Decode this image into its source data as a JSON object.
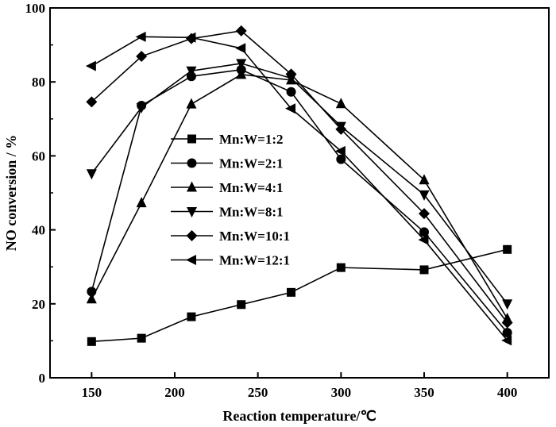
{
  "chart_data": {
    "type": "line",
    "xlabel": "Reaction temperature/℃",
    "ylabel": "NO conversion / %",
    "xlim": [
      125,
      425
    ],
    "ylim": [
      0,
      100
    ],
    "xticks": [
      150,
      200,
      250,
      300,
      350,
      400
    ],
    "yticks": [
      0,
      20,
      40,
      60,
      80,
      100
    ],
    "x": [
      150,
      180,
      210,
      240,
      270,
      300,
      350,
      400
    ],
    "legend_position": "center-left",
    "series": [
      {
        "name": "Mn:W=1:2",
        "marker": "square",
        "values": [
          9.8,
          10.7,
          16.5,
          19.8,
          23.1,
          29.8,
          29.2,
          34.7
        ]
      },
      {
        "name": "Mn:W=2:1",
        "marker": "circle",
        "values": [
          23.3,
          73.6,
          81.5,
          83.3,
          77.3,
          59.1,
          39.4,
          12.2
        ]
      },
      {
        "name": "Mn:W=4:1",
        "marker": "triangle-up",
        "values": [
          21.3,
          47.3,
          74.0,
          82.0,
          80.5,
          74.1,
          53.5,
          16.0
        ]
      },
      {
        "name": "Mn:W=8:1",
        "marker": "triangle-down",
        "values": [
          55.2,
          73.1,
          83.0,
          85.0,
          81.0,
          68.0,
          49.5,
          20.0
        ]
      },
      {
        "name": "Mn:W=10:1",
        "marker": "diamond",
        "values": [
          74.6,
          86.9,
          91.7,
          93.8,
          82.1,
          67.2,
          44.4,
          14.9
        ]
      },
      {
        "name": "Mn:W=12:1",
        "marker": "triangle-left",
        "values": [
          84.3,
          92.2,
          92.0,
          89.1,
          72.8,
          61.3,
          37.3,
          10.1
        ]
      }
    ]
  }
}
